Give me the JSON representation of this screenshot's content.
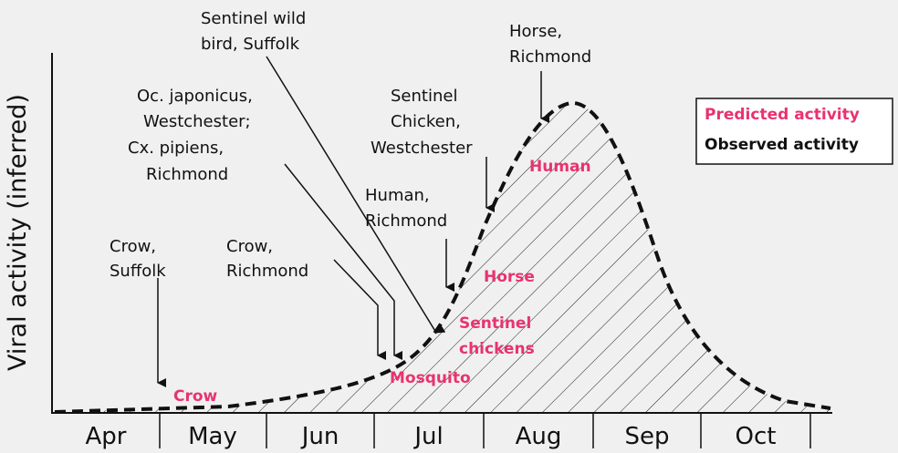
{
  "y_axis_label": "Viral activity (inferred)",
  "months": [
    "Apr",
    "May",
    "Jun",
    "Jul",
    "Aug",
    "Sep",
    "Oct"
  ],
  "annotations": [
    {
      "lines": [
        "Crow,",
        "Suffolk"
      ]
    },
    {
      "lines": [
        "Crow,",
        "Richmond"
      ]
    },
    {
      "lines": [
        "Oc. japonicus,",
        "Westchester;",
        "Cx. pipiens,",
        "Richmond"
      ]
    },
    {
      "lines": [
        "Sentinel wild",
        "bird, Suffolk"
      ]
    },
    {
      "lines": [
        "Human,",
        "Richmond"
      ]
    },
    {
      "lines": [
        "Sentinel",
        "Chicken,",
        "Westchester"
      ]
    },
    {
      "lines": [
        "Horse,",
        "Richmond"
      ]
    }
  ],
  "predicted_labels": [
    {
      "lines": [
        "Crow"
      ]
    },
    {
      "lines": [
        "Mosquito"
      ]
    },
    {
      "lines": [
        "Sentinel",
        "chickens"
      ]
    },
    {
      "lines": [
        "Horse"
      ]
    },
    {
      "lines": [
        "Human"
      ]
    }
  ],
  "legend": [
    "Predicted activity",
    "Observed activity"
  ]
}
